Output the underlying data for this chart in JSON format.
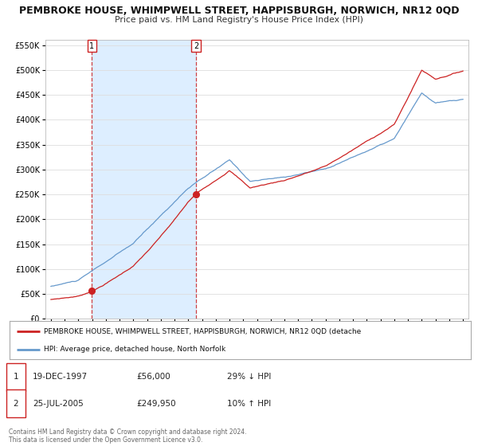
{
  "title": "PEMBROKE HOUSE, WHIMPWELL STREET, HAPPISBURGH, NORWICH, NR12 0QD",
  "subtitle": "Price paid vs. HM Land Registry's House Price Index (HPI)",
  "ylim": [
    0,
    560000
  ],
  "yticks": [
    0,
    50000,
    100000,
    150000,
    200000,
    250000,
    300000,
    350000,
    400000,
    450000,
    500000,
    550000
  ],
  "ytick_labels": [
    "£0",
    "£50K",
    "£100K",
    "£150K",
    "£200K",
    "£250K",
    "£300K",
    "£350K",
    "£400K",
    "£450K",
    "£500K",
    "£550K"
  ],
  "xlim_start": 1994.6,
  "xlim_end": 2025.4,
  "xticks": [
    1995,
    1996,
    1997,
    1998,
    1999,
    2000,
    2001,
    2002,
    2003,
    2004,
    2005,
    2006,
    2007,
    2008,
    2009,
    2010,
    2011,
    2012,
    2013,
    2014,
    2015,
    2016,
    2017,
    2018,
    2019,
    2020,
    2021,
    2022,
    2023,
    2024,
    2025
  ],
  "hpi_color": "#6699cc",
  "price_color": "#cc2222",
  "sale1_year": 1997.97,
  "sale1_price": 56000,
  "sale2_year": 2005.56,
  "sale2_price": 249950,
  "bg_color": "#ffffff",
  "plot_bg": "#ffffff",
  "grid_color": "#dddddd",
  "span_color": "#ddeeff",
  "legend_line1": "PEMBROKE HOUSE, WHIMPWELL STREET, HAPPISBURGH, NORWICH, NR12 0QD (detache",
  "legend_line2": "HPI: Average price, detached house, North Norfolk",
  "sale1_label": "1",
  "sale2_label": "2",
  "sale1_date": "19-DEC-1997",
  "sale1_price_str": "£56,000",
  "sale1_pct": "29% ↓ HPI",
  "sale2_date": "25-JUL-2005",
  "sale2_price_str": "£249,950",
  "sale2_pct": "10% ↑ HPI",
  "footnote": "Contains HM Land Registry data © Crown copyright and database right 2024.\nThis data is licensed under the Open Government Licence v3.0."
}
